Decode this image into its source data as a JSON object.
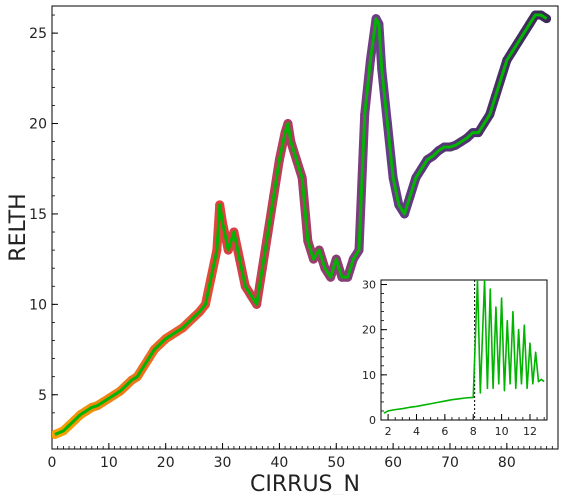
{
  "chart_data": [
    {
      "type": "line",
      "title": "",
      "xlabel": "CIRRUS_N",
      "ylabel": "RELTH",
      "xlim": [
        0,
        89
      ],
      "ylim": [
        2,
        26.5
      ],
      "xticks": [
        0,
        10,
        20,
        30,
        40,
        50,
        60,
        70,
        80
      ],
      "yticks": [
        5,
        10,
        15,
        20,
        25
      ],
      "grid": false,
      "series": [
        {
          "line_color": "#00b400",
          "marker_gradient": [
            "#f5a000",
            "#e04040",
            "#6a3d8a",
            "#3a2a55"
          ],
          "x": [
            0.5,
            2,
            3,
            4,
            5,
            6,
            7,
            8,
            9,
            10,
            11,
            12,
            13,
            14,
            15,
            16,
            17,
            18,
            19,
            20,
            21,
            22,
            23,
            24,
            25,
            26,
            27,
            28,
            29,
            29.5,
            30,
            31,
            32,
            33,
            34,
            35,
            36,
            37,
            38,
            39,
            40,
            41,
            41.5,
            42,
            43,
            44,
            45,
            46,
            47,
            48,
            49,
            50,
            51,
            52,
            53,
            54,
            55,
            56,
            57,
            57.5,
            58,
            59,
            60,
            61,
            62,
            63,
            64,
            65,
            66,
            67,
            68,
            69,
            70,
            71,
            72,
            73,
            74,
            75,
            76,
            77,
            78,
            79,
            80,
            81,
            82,
            83,
            84,
            85,
            86,
            87
          ],
          "y": [
            2.8,
            3.0,
            3.3,
            3.6,
            3.9,
            4.1,
            4.3,
            4.4,
            4.6,
            4.8,
            5.0,
            5.2,
            5.5,
            5.8,
            6.0,
            6.5,
            7.0,
            7.5,
            7.8,
            8.1,
            8.3,
            8.5,
            8.7,
            9.0,
            9.3,
            9.6,
            10.0,
            11.5,
            13.0,
            15.5,
            14.5,
            13.0,
            14.0,
            12.5,
            11.0,
            10.5,
            10.0,
            12.0,
            14.0,
            16.0,
            18.0,
            19.5,
            20.0,
            19.0,
            18.0,
            17.0,
            13.5,
            12.5,
            13.0,
            12.0,
            11.5,
            12.5,
            11.5,
            11.5,
            12.5,
            13.0,
            20.5,
            23.5,
            25.8,
            25.5,
            23.0,
            20.0,
            17.0,
            15.5,
            15.0,
            16.0,
            17.0,
            17.5,
            18.0,
            18.2,
            18.5,
            18.7,
            18.7,
            18.8,
            19.0,
            19.2,
            19.5,
            19.5,
            20.0,
            20.5,
            21.5,
            22.5,
            23.5,
            24.0,
            24.5,
            25.0,
            25.5,
            26.0,
            26.0,
            25.8
          ]
        }
      ]
    },
    {
      "type": "line",
      "title": "",
      "xlabel": "",
      "ylabel": "",
      "xlim": [
        1.5,
        13.2
      ],
      "ylim": [
        0,
        31
      ],
      "xticks": [
        2,
        4,
        6,
        8,
        10,
        12
      ],
      "yticks": [
        0,
        10,
        20,
        30
      ],
      "vline": {
        "x": 8.1,
        "style": "dotted",
        "color": "#000000"
      },
      "grid": false,
      "series": [
        {
          "line_color": "#00b400",
          "x": [
            1.7,
            2.0,
            2.5,
            3.0,
            3.5,
            4.0,
            4.5,
            5.0,
            5.5,
            6.0,
            6.5,
            7.0,
            7.5,
            8.0,
            8.3,
            8.5,
            8.8,
            9.0,
            9.2,
            9.4,
            9.6,
            9.8,
            10.0,
            10.2,
            10.4,
            10.6,
            10.8,
            11.0,
            11.2,
            11.4,
            11.6,
            11.8,
            12.0,
            12.2,
            12.4,
            12.6,
            12.8,
            13.0
          ],
          "y": [
            1.5,
            2.0,
            2.3,
            2.5,
            2.8,
            3.0,
            3.3,
            3.6,
            3.9,
            4.2,
            4.5,
            4.7,
            4.9,
            5.0,
            31.0,
            6.0,
            31.0,
            7.0,
            29.0,
            7.0,
            25.0,
            8.0,
            27.0,
            6.5,
            22.0,
            8.0,
            24.0,
            7.0,
            20.0,
            8.0,
            21.0,
            7.0,
            17.0,
            8.0,
            15.0,
            8.5,
            9.0,
            8.5
          ]
        }
      ]
    }
  ]
}
